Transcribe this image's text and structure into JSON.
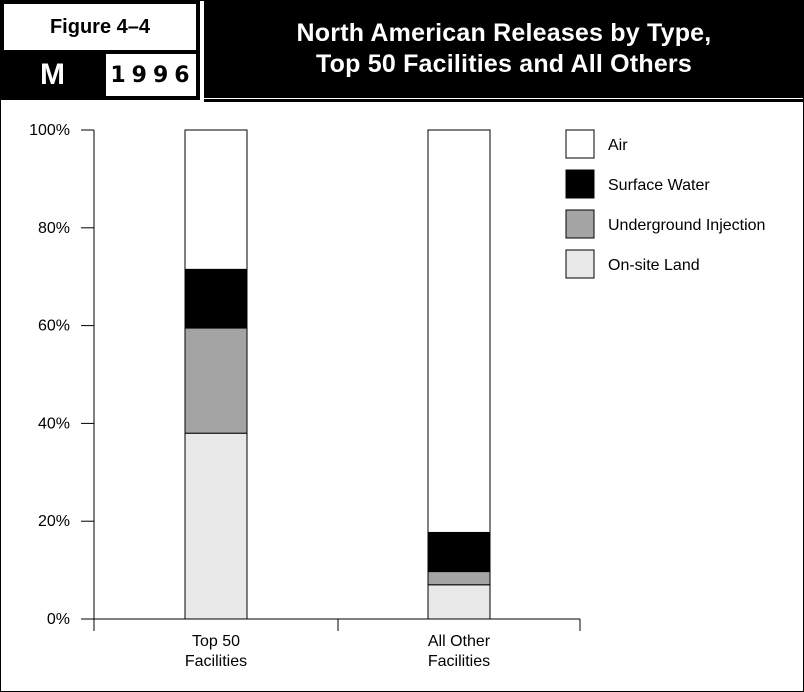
{
  "header": {
    "figure_label": "Figure 4–4",
    "badge_letter": "M",
    "year": "1996",
    "title_line1": "North American Releases by Type,",
    "title_line2": "Top 50 Facilities and All Others"
  },
  "chart_data": {
    "type": "bar",
    "stacked": true,
    "categories": [
      [
        "Top 50",
        "Facilities"
      ],
      [
        "All Other",
        "Facilities"
      ]
    ],
    "series": [
      {
        "name": "On-site Land",
        "values": [
          38,
          7
        ],
        "color": "#e8e8e8"
      },
      {
        "name": "Underground Injection",
        "values": [
          21.5,
          2.7
        ],
        "color": "#a4a4a4"
      },
      {
        "name": "Surface Water",
        "values": [
          12,
          8
        ],
        "color": "#000000"
      },
      {
        "name": "Air",
        "values": [
          28.5,
          82.3
        ],
        "color": "#ffffff"
      }
    ],
    "legend_order": [
      "Air",
      "Surface Water",
      "Underground Injection",
      "On-site Land"
    ],
    "legend_position": "top-right",
    "ylim": [
      0,
      100
    ],
    "yticks": [
      "0%",
      "20%",
      "40%",
      "60%",
      "80%",
      "100%"
    ],
    "title": "North American Releases by Type, Top 50 Facilities and All Others",
    "xlabel": "",
    "ylabel": "",
    "grid": false
  }
}
